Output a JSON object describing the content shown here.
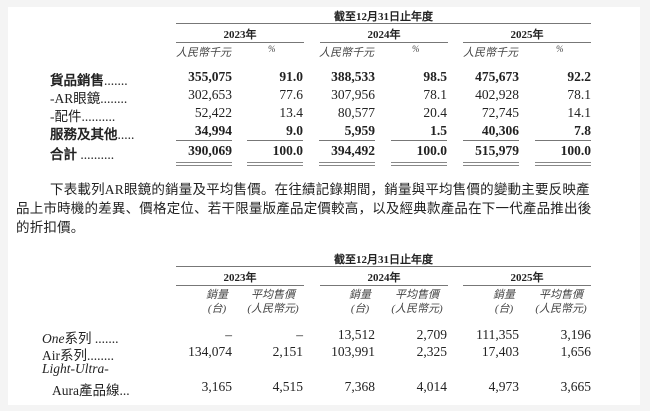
{
  "table1": {
    "period_header": "截至12月31日止年度",
    "years": [
      "2023年",
      "2024年",
      "2025年"
    ],
    "unit_labels": [
      "人民幣千元",
      "%"
    ],
    "rows": [
      {
        "label": "貨品銷售",
        "dots": ".......",
        "bold": true,
        "values": [
          "355,075",
          "91.0",
          "388,533",
          "98.5",
          "475,673",
          "92.2"
        ]
      },
      {
        "label": "-AR眼鏡",
        "dots": "........",
        "bold": false,
        "values": [
          "302,653",
          "77.6",
          "307,956",
          "78.1",
          "402,928",
          "78.1"
        ]
      },
      {
        "label": "-配件",
        "dots": "..........",
        "bold": false,
        "values": [
          "52,422",
          "13.4",
          "80,577",
          "20.4",
          "72,745",
          "14.1"
        ]
      },
      {
        "label": "服務及其他",
        "dots": ".....",
        "bold": true,
        "values": [
          "34,994",
          "9.0",
          "5,959",
          "1.5",
          "40,306",
          "7.8"
        ]
      },
      {
        "label": "合計",
        "dots": " ..........",
        "bold": true,
        "values": [
          "390,069",
          "100.0",
          "394,492",
          "100.0",
          "515,979",
          "100.0"
        ]
      }
    ]
  },
  "paragraph": {
    "lines": [
      "下表載列AR眼鏡的銷量及平均售價。在往績記錄期間，銷量與平均售價的變動主要反映產",
      "品上市時機的差異、價格定位、若干限量版產品定價較高，以及經典款產品在下一代產品推出後",
      "的折扣價。"
    ]
  },
  "table2": {
    "period_header": "截至12月31日止年度",
    "years": [
      "2023年",
      "2024年",
      "2025年"
    ],
    "unit_labels": [
      [
        "銷量",
        "(台)"
      ],
      [
        "平均售價",
        "(人民幣元)"
      ]
    ],
    "rows": [
      {
        "label_italic": "One",
        "label": "系列",
        "dots": " .......",
        "values": [
          "–",
          "–",
          "13,512",
          "2,709",
          "111,355",
          "3,196"
        ]
      },
      {
        "label_italic": "",
        "label": "Air系列",
        "dots": "........",
        "values": [
          "134,074",
          "2,151",
          "103,991",
          "2,325",
          "17,403",
          "1,656"
        ]
      },
      {
        "label_italic": "Light-Ultra-",
        "label": "Aura產品線",
        "dots": "...",
        "values": [
          "3,165",
          "4,515",
          "7,368",
          "4,014",
          "4,973",
          "3,665"
        ]
      }
    ]
  }
}
